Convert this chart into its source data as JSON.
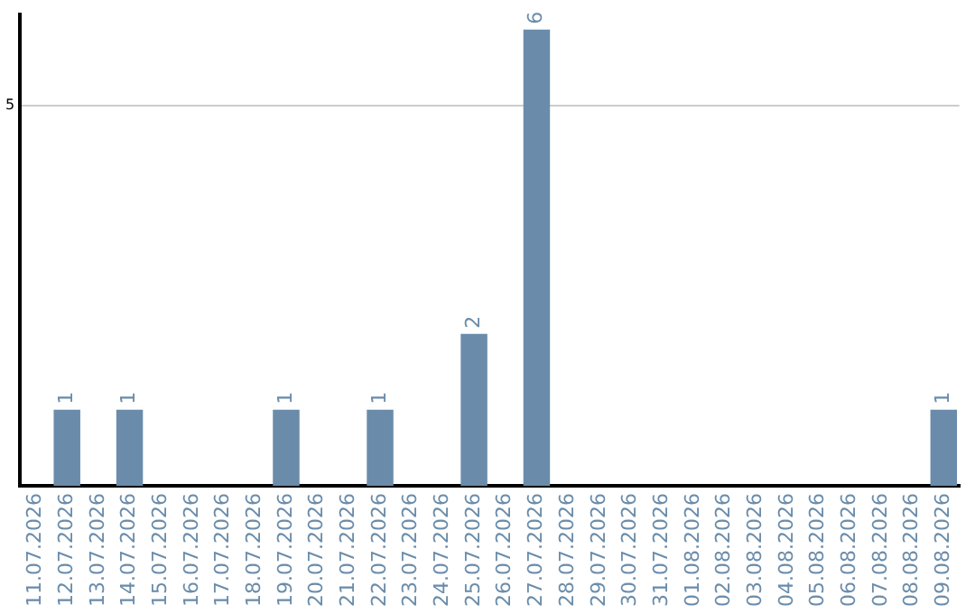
{
  "chart_data": {
    "type": "bar",
    "categories": [
      "11.07.2026",
      "12.07.2026",
      "13.07.2026",
      "14.07.2026",
      "15.07.2026",
      "16.07.2026",
      "17.07.2026",
      "18.07.2026",
      "19.07.2026",
      "20.07.2026",
      "21.07.2026",
      "22.07.2026",
      "23.07.2026",
      "24.07.2026",
      "25.07.2026",
      "26.07.2026",
      "27.07.2026",
      "28.07.2026",
      "29.07.2026",
      "30.07.2026",
      "31.07.2026",
      "01.08.2026",
      "02.08.2026",
      "03.08.2026",
      "04.08.2026",
      "05.08.2026",
      "06.08.2026",
      "07.08.2026",
      "08.08.2026",
      "09.08.2026"
    ],
    "values": [
      0,
      1,
      0,
      1,
      0,
      0,
      0,
      0,
      1,
      0,
      0,
      1,
      0,
      0,
      2,
      0,
      6,
      0,
      0,
      0,
      0,
      0,
      0,
      0,
      0,
      0,
      0,
      0,
      0,
      1
    ],
    "value_labels": [
      null,
      "1",
      null,
      "1",
      null,
      null,
      null,
      null,
      "1",
      null,
      null,
      "1",
      null,
      null,
      "2",
      null,
      "6",
      null,
      null,
      null,
      null,
      null,
      null,
      null,
      null,
      null,
      null,
      null,
      null,
      "1"
    ],
    "color": "#6a8caa",
    "ylim": [
      0,
      6.2
    ],
    "yticks": [
      5
    ],
    "grid": "y",
    "legend": false
  }
}
